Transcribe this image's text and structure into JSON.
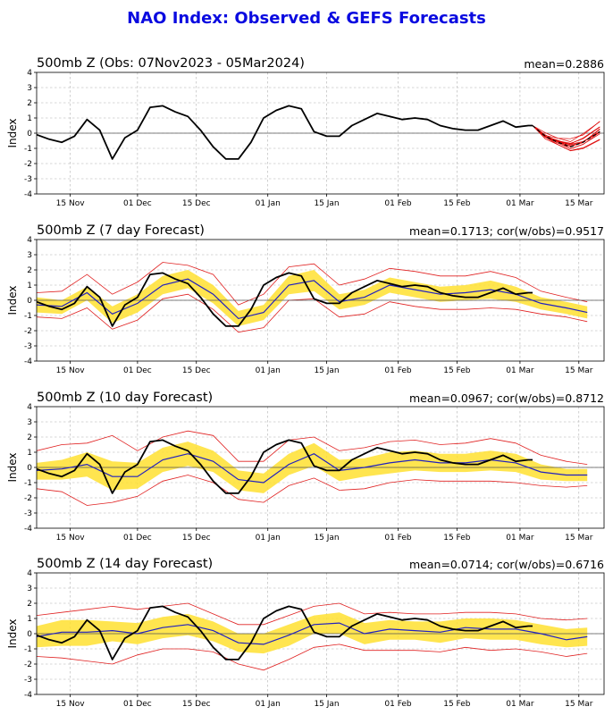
{
  "title": "NAO Index: Observed & GEFS Forecasts",
  "chart_data": [
    {
      "type": "line",
      "title": "500mb Z (Obs: 07Nov2023 - 05Mar2024)",
      "stat": "mean=0.2886",
      "ylabel": "Index",
      "ylim": [
        -4,
        4
      ],
      "yticks": [
        "4",
        "3",
        "2",
        "1",
        "0",
        "-1",
        "-2",
        "-3",
        "-4"
      ],
      "xticks": [
        "15 Nov",
        "01 Dec",
        "15 Dec",
        "01 Jan",
        "15 Jan",
        "01 Feb",
        "15 Feb",
        "01 Mar",
        "15 Mar"
      ],
      "grid": true,
      "series": [
        {
          "role": "observed",
          "color": "#000000",
          "day": [
            0,
            3,
            6,
            9,
            12,
            15,
            18,
            21,
            24,
            27,
            30,
            33,
            36,
            39,
            42,
            45,
            48,
            51,
            54,
            57,
            60,
            63,
            66,
            69,
            72,
            75,
            78,
            81,
            84,
            87,
            90,
            93,
            96,
            99,
            102,
            105,
            108,
            111,
            114,
            117,
            118
          ],
          "values": [
            -0.1,
            -0.4,
            -0.6,
            -0.2,
            0.9,
            0.2,
            -1.7,
            -0.3,
            0.2,
            1.7,
            1.8,
            1.4,
            1.1,
            0.2,
            -0.9,
            -1.7,
            -1.7,
            -0.6,
            1.0,
            1.5,
            1.8,
            1.6,
            0.1,
            -0.2,
            -0.2,
            0.5,
            0.9,
            1.3,
            1.1,
            0.9,
            1.0,
            0.9,
            0.5,
            0.3,
            0.2,
            0.2,
            0.5,
            0.8,
            0.4,
            0.5,
            0.5
          ]
        },
        {
          "role": "forecast-ensemble",
          "color": "#dd0000",
          "day": [
            118,
            121,
            124,
            127,
            130,
            134
          ],
          "values": [
            0.5,
            -0.2,
            -0.6,
            -0.9,
            -0.6,
            0.1
          ],
          "spread": 0.5
        }
      ]
    },
    {
      "type": "line",
      "title": "500mb Z (7 day Forecast)",
      "stat": "mean=0.1713; cor(w/obs)=0.9517",
      "ylabel": "Index",
      "ylim": [
        -4,
        4
      ],
      "yticks": [
        "4",
        "3",
        "2",
        "1",
        "0",
        "-1",
        "-2",
        "-3",
        "-4"
      ],
      "xticks": [
        "15 Nov",
        "01 Dec",
        "15 Dec",
        "01 Jan",
        "15 Jan",
        "01 Feb",
        "15 Feb",
        "01 Mar",
        "15 Mar"
      ],
      "grid": true,
      "series": [
        {
          "role": "observed",
          "color": "#000000",
          "day": [
            0,
            3,
            6,
            9,
            12,
            15,
            18,
            21,
            24,
            27,
            30,
            33,
            36,
            39,
            42,
            45,
            48,
            51,
            54,
            57,
            60,
            63,
            66,
            69,
            72,
            75,
            78,
            81,
            84,
            87,
            90,
            93,
            96,
            99,
            102,
            105,
            108,
            111,
            114,
            117,
            118
          ],
          "values": [
            -0.1,
            -0.4,
            -0.6,
            -0.2,
            0.9,
            0.2,
            -1.7,
            -0.3,
            0.2,
            1.7,
            1.8,
            1.4,
            1.1,
            0.2,
            -0.9,
            -1.7,
            -1.7,
            -0.6,
            1.0,
            1.5,
            1.8,
            1.6,
            0.1,
            -0.2,
            -0.2,
            0.5,
            0.9,
            1.3,
            1.1,
            0.9,
            1.0,
            0.9,
            0.5,
            0.3,
            0.2,
            0.2,
            0.5,
            0.8,
            0.4,
            0.5,
            0.5
          ]
        },
        {
          "role": "forecast-mean",
          "color": "#2020c0",
          "day": [
            0,
            6,
            12,
            18,
            24,
            30,
            36,
            42,
            48,
            54,
            60,
            66,
            72,
            78,
            84,
            90,
            96,
            102,
            108,
            114,
            120,
            126,
            131
          ],
          "values": [
            -0.3,
            -0.4,
            0.5,
            -0.9,
            -0.2,
            1.0,
            1.4,
            0.4,
            -1.2,
            -0.8,
            1.0,
            1.3,
            -0.1,
            0.2,
            1.0,
            0.7,
            0.4,
            0.5,
            0.7,
            0.4,
            -0.2,
            -0.5,
            -0.8
          ]
        },
        {
          "role": "band-inner",
          "color": "#ffe030",
          "day": [
            0,
            6,
            12,
            18,
            24,
            30,
            36,
            42,
            48,
            54,
            60,
            66,
            72,
            78,
            84,
            90,
            96,
            102,
            108,
            114,
            120,
            126,
            131
          ],
          "upper": [
            0.2,
            0.0,
            0.9,
            -0.4,
            0.4,
            1.6,
            2.0,
            1.0,
            -0.7,
            -0.3,
            1.6,
            2.0,
            0.4,
            0.7,
            1.5,
            1.2,
            0.9,
            1.0,
            1.3,
            0.9,
            0.2,
            -0.1,
            -0.4
          ],
          "lower": [
            -0.8,
            -0.9,
            0.0,
            -1.5,
            -0.8,
            0.4,
            0.8,
            -0.2,
            -1.7,
            -1.3,
            0.4,
            0.6,
            -0.6,
            -0.3,
            0.5,
            0.2,
            -0.1,
            0.0,
            0.1,
            -0.1,
            -0.6,
            -0.9,
            -1.2
          ]
        },
        {
          "role": "band-outer",
          "color": "#e02020",
          "day": [
            0,
            6,
            12,
            18,
            24,
            30,
            36,
            42,
            48,
            54,
            60,
            66,
            72,
            78,
            84,
            90,
            96,
            102,
            108,
            114,
            120,
            126,
            131
          ],
          "upper": [
            0.5,
            0.6,
            1.7,
            0.4,
            1.2,
            2.5,
            2.3,
            1.7,
            -0.3,
            0.4,
            2.2,
            2.4,
            1.0,
            1.4,
            2.1,
            1.9,
            1.6,
            1.6,
            1.9,
            1.5,
            0.6,
            0.2,
            -0.1
          ],
          "lower": [
            -1.1,
            -1.2,
            -0.5,
            -1.9,
            -1.3,
            0.1,
            0.4,
            -0.6,
            -2.1,
            -1.8,
            0.0,
            0.1,
            -1.1,
            -0.9,
            -0.1,
            -0.4,
            -0.6,
            -0.6,
            -0.5,
            -0.6,
            -0.9,
            -1.1,
            -1.4
          ]
        }
      ]
    },
    {
      "type": "line",
      "title": "500mb Z (10 day Forecast)",
      "stat": "mean=0.0967; cor(w/obs)=0.8712",
      "ylabel": "Index",
      "ylim": [
        -4,
        4
      ],
      "yticks": [
        "4",
        "3",
        "2",
        "1",
        "0",
        "-1",
        "-2",
        "-3",
        "-4"
      ],
      "xticks": [
        "15 Nov",
        "01 Dec",
        "15 Dec",
        "01 Jan",
        "15 Jan",
        "01 Feb",
        "15 Feb",
        "01 Mar",
        "15 Mar"
      ],
      "grid": true,
      "series": [
        {
          "role": "observed",
          "color": "#000000",
          "day": [
            0,
            3,
            6,
            9,
            12,
            15,
            18,
            21,
            24,
            27,
            30,
            33,
            36,
            39,
            42,
            45,
            48,
            51,
            54,
            57,
            60,
            63,
            66,
            69,
            72,
            75,
            78,
            81,
            84,
            87,
            90,
            93,
            96,
            99,
            102,
            105,
            108,
            111,
            114,
            117,
            118
          ],
          "values": [
            -0.1,
            -0.4,
            -0.6,
            -0.2,
            0.9,
            0.2,
            -1.7,
            -0.3,
            0.2,
            1.7,
            1.8,
            1.4,
            1.1,
            0.2,
            -0.9,
            -1.7,
            -1.7,
            -0.6,
            1.0,
            1.5,
            1.8,
            1.6,
            0.1,
            -0.2,
            -0.2,
            0.5,
            0.9,
            1.3,
            1.1,
            0.9,
            1.0,
            0.9,
            0.5,
            0.3,
            0.2,
            0.2,
            0.5,
            0.8,
            0.4,
            0.5,
            0.5
          ]
        },
        {
          "role": "forecast-mean",
          "color": "#2020c0",
          "day": [
            0,
            6,
            12,
            18,
            24,
            30,
            36,
            42,
            48,
            54,
            60,
            66,
            72,
            78,
            84,
            90,
            96,
            102,
            108,
            114,
            120,
            126,
            131
          ],
          "values": [
            -0.2,
            -0.1,
            0.2,
            -0.6,
            -0.6,
            0.5,
            0.9,
            0.4,
            -0.8,
            -1.0,
            0.2,
            0.9,
            -0.2,
            0.0,
            0.3,
            0.5,
            0.3,
            0.3,
            0.5,
            0.3,
            -0.3,
            -0.5,
            -0.5
          ]
        },
        {
          "role": "band-inner",
          "color": "#ffe030",
          "day": [
            0,
            6,
            12,
            18,
            24,
            30,
            36,
            42,
            48,
            54,
            60,
            66,
            72,
            78,
            84,
            90,
            96,
            102,
            108,
            114,
            120,
            126,
            131
          ],
          "upper": [
            0.3,
            0.5,
            1.0,
            0.4,
            0.3,
            1.3,
            1.7,
            1.1,
            -0.2,
            -0.4,
            0.9,
            1.6,
            0.5,
            0.6,
            1.0,
            1.1,
            0.9,
            0.9,
            1.1,
            0.9,
            0.2,
            -0.1,
            -0.1
          ],
          "lower": [
            -0.8,
            -0.8,
            -0.6,
            -1.5,
            -1.4,
            -0.3,
            0.1,
            -0.3,
            -1.5,
            -1.7,
            -0.5,
            0.1,
            -0.9,
            -0.6,
            -0.4,
            -0.2,
            -0.3,
            -0.3,
            -0.2,
            -0.3,
            -0.8,
            -0.9,
            -0.9
          ]
        },
        {
          "role": "band-outer",
          "color": "#e02020",
          "day": [
            0,
            6,
            12,
            18,
            24,
            30,
            36,
            42,
            48,
            54,
            60,
            66,
            72,
            78,
            84,
            90,
            96,
            102,
            108,
            114,
            120,
            126,
            131
          ],
          "upper": [
            1.1,
            1.5,
            1.6,
            2.1,
            1.1,
            2.0,
            2.4,
            2.1,
            0.4,
            0.4,
            1.8,
            2.0,
            1.1,
            1.3,
            1.7,
            1.8,
            1.5,
            1.6,
            1.9,
            1.6,
            0.8,
            0.4,
            0.2
          ],
          "lower": [
            -1.4,
            -1.6,
            -2.5,
            -2.3,
            -1.9,
            -0.9,
            -0.5,
            -1.0,
            -2.1,
            -2.3,
            -1.2,
            -0.7,
            -1.5,
            -1.4,
            -1.0,
            -0.8,
            -0.9,
            -0.9,
            -0.9,
            -1.0,
            -1.2,
            -1.3,
            -1.2
          ]
        }
      ]
    },
    {
      "type": "line",
      "title": "500mb Z (14 day Forecast)",
      "stat": "mean=0.0714; cor(w/obs)=0.6716",
      "ylabel": "Index",
      "ylim": [
        -4,
        4
      ],
      "yticks": [
        "4",
        "3",
        "2",
        "1",
        "0",
        "-1",
        "-2",
        "-3",
        "-4"
      ],
      "xticks": [
        "15 Nov",
        "01 Dec",
        "15 Dec",
        "01 Jan",
        "15 Jan",
        "01 Feb",
        "15 Feb",
        "01 Mar",
        "15 Mar"
      ],
      "grid": true,
      "series": [
        {
          "role": "observed",
          "color": "#000000",
          "day": [
            0,
            3,
            6,
            9,
            12,
            15,
            18,
            21,
            24,
            27,
            30,
            33,
            36,
            39,
            42,
            45,
            48,
            51,
            54,
            57,
            60,
            63,
            66,
            69,
            72,
            75,
            78,
            81,
            84,
            87,
            90,
            93,
            96,
            99,
            102,
            105,
            108,
            111,
            114,
            117,
            118
          ],
          "values": [
            -0.1,
            -0.4,
            -0.6,
            -0.2,
            0.9,
            0.2,
            -1.7,
            -0.3,
            0.2,
            1.7,
            1.8,
            1.4,
            1.1,
            0.2,
            -0.9,
            -1.7,
            -1.7,
            -0.6,
            1.0,
            1.5,
            1.8,
            1.6,
            0.1,
            -0.2,
            -0.2,
            0.5,
            0.9,
            1.3,
            1.1,
            0.9,
            1.0,
            0.9,
            0.5,
            0.3,
            0.2,
            0.2,
            0.5,
            0.8,
            0.4,
            0.5,
            0.5
          ]
        },
        {
          "role": "forecast-mean",
          "color": "#2020c0",
          "day": [
            0,
            6,
            12,
            18,
            24,
            30,
            36,
            42,
            48,
            54,
            60,
            66,
            72,
            78,
            84,
            90,
            96,
            102,
            108,
            114,
            120,
            126,
            131
          ],
          "values": [
            -0.2,
            0.1,
            0.1,
            0.2,
            0.0,
            0.4,
            0.6,
            0.2,
            -0.6,
            -0.7,
            -0.1,
            0.6,
            0.7,
            0.0,
            0.3,
            0.2,
            0.1,
            0.4,
            0.3,
            0.3,
            0.0,
            -0.4,
            -0.2
          ]
        },
        {
          "role": "band-inner",
          "color": "#ffe030",
          "day": [
            0,
            6,
            12,
            18,
            24,
            30,
            36,
            42,
            48,
            54,
            60,
            66,
            72,
            78,
            84,
            90,
            96,
            102,
            108,
            114,
            120,
            126,
            131
          ],
          "upper": [
            0.5,
            0.9,
            0.9,
            0.8,
            0.7,
            1.1,
            1.3,
            0.8,
            0.0,
            0.0,
            0.6,
            1.2,
            1.4,
            0.7,
            0.9,
            0.8,
            0.8,
            1.0,
            1.0,
            0.9,
            0.6,
            0.3,
            0.4
          ],
          "lower": [
            -0.9,
            -0.8,
            -0.8,
            -0.5,
            -0.7,
            -0.3,
            -0.1,
            -0.5,
            -1.2,
            -1.3,
            -0.8,
            0.0,
            0.0,
            -0.7,
            -0.4,
            -0.4,
            -0.6,
            -0.3,
            -0.4,
            -0.4,
            -0.7,
            -0.9,
            -0.8
          ]
        },
        {
          "role": "band-outer",
          "color": "#e02020",
          "day": [
            0,
            6,
            12,
            18,
            24,
            30,
            36,
            42,
            48,
            54,
            60,
            66,
            72,
            78,
            84,
            90,
            96,
            102,
            108,
            114,
            120,
            126,
            131
          ],
          "upper": [
            1.2,
            1.4,
            1.6,
            1.8,
            1.6,
            1.8,
            2.0,
            1.3,
            0.6,
            0.6,
            1.2,
            1.8,
            2.0,
            1.3,
            1.4,
            1.3,
            1.3,
            1.4,
            1.4,
            1.3,
            1.0,
            0.9,
            1.0
          ],
          "lower": [
            -1.5,
            -1.6,
            -1.8,
            -2.0,
            -1.4,
            -1.0,
            -1.0,
            -1.2,
            -2.0,
            -2.4,
            -1.7,
            -0.9,
            -0.7,
            -1.1,
            -1.1,
            -1.1,
            -1.2,
            -0.9,
            -1.1,
            -1.0,
            -1.2,
            -1.5,
            -1.3
          ]
        }
      ]
    }
  ]
}
